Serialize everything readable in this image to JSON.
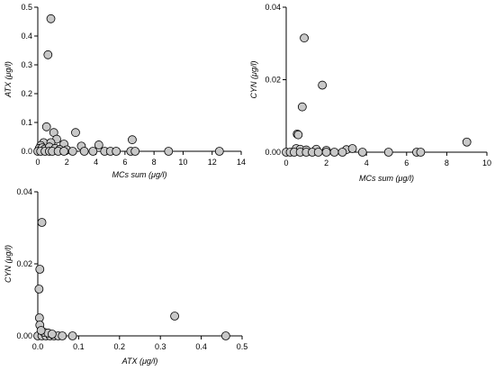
{
  "chart_data": [
    {
      "type": "scatter",
      "xlabel": "MCs sum (μg/l)",
      "ylabel": "ATX (μg/l)",
      "xlim": [
        0,
        14
      ],
      "ylim": [
        0,
        0.5
      ],
      "xticks": [
        0,
        2,
        4,
        6,
        8,
        10,
        12,
        14
      ],
      "yticks": [
        0.0,
        0.1,
        0.2,
        0.3,
        0.4,
        0.5
      ],
      "xtick_labels": [
        "0",
        "2",
        "4",
        "6",
        "8",
        "10",
        "12",
        "14"
      ],
      "ytick_labels": [
        "0.0",
        "0.1",
        "0.2",
        "0.3",
        "0.4",
        "0.5"
      ],
      "grid": false,
      "points": [
        [
          0.9,
          0.46
        ],
        [
          0.7,
          0.335
        ],
        [
          0.6,
          0.085
        ],
        [
          2.6,
          0.065
        ],
        [
          1.1,
          0.065
        ],
        [
          6.5,
          0.04
        ],
        [
          1.3,
          0.042
        ],
        [
          0.4,
          0.03
        ],
        [
          0.9,
          0.03
        ],
        [
          1.8,
          0.025
        ],
        [
          0.2,
          0.02
        ],
        [
          3.0,
          0.018
        ],
        [
          4.2,
          0.022
        ],
        [
          0.1,
          0.01
        ],
        [
          0.3,
          0.012
        ],
        [
          0.5,
          0.008
        ],
        [
          0.8,
          0.015
        ],
        [
          1.2,
          0.01
        ],
        [
          1.5,
          0.006
        ],
        [
          2.0,
          0.005
        ],
        [
          0.0,
          0.0
        ],
        [
          0.2,
          0.0
        ],
        [
          0.5,
          0.0
        ],
        [
          0.8,
          0.0
        ],
        [
          1.0,
          0.0
        ],
        [
          1.4,
          0.0
        ],
        [
          1.8,
          0.0
        ],
        [
          2.4,
          0.0
        ],
        [
          3.2,
          0.0
        ],
        [
          3.8,
          0.0
        ],
        [
          4.6,
          0.0
        ],
        [
          5.0,
          0.0
        ],
        [
          5.4,
          0.0
        ],
        [
          6.4,
          0.0
        ],
        [
          6.7,
          0.0
        ],
        [
          9.0,
          0.0
        ],
        [
          12.5,
          0.0
        ]
      ]
    },
    {
      "type": "scatter",
      "xlabel": "MCs sum (μg/l)",
      "ylabel": "CYN (μg/l)",
      "xlim": [
        0,
        10
      ],
      "ylim": [
        0,
        0.04
      ],
      "xticks": [
        0,
        2,
        4,
        6,
        8,
        10
      ],
      "yticks": [
        0.0,
        0.02,
        0.04
      ],
      "xtick_labels": [
        "0",
        "2",
        "4",
        "6",
        "8",
        "10"
      ],
      "ytick_labels": [
        "0.00",
        "0.02",
        "0.04"
      ],
      "grid": false,
      "points": [
        [
          0.9,
          0.0315
        ],
        [
          1.8,
          0.0185
        ],
        [
          0.8,
          0.0125
        ],
        [
          0.55,
          0.005
        ],
        [
          0.6,
          0.0048
        ],
        [
          9.0,
          0.0028
        ],
        [
          0.5,
          0.001
        ],
        [
          0.7,
          0.0008
        ],
        [
          1.0,
          0.0006
        ],
        [
          1.5,
          0.0008
        ],
        [
          2.0,
          0.0005
        ],
        [
          3.0,
          0.0007
        ],
        [
          3.3,
          0.001
        ],
        [
          0.0,
          0.0
        ],
        [
          0.2,
          0.0
        ],
        [
          0.4,
          0.0
        ],
        [
          0.7,
          0.0
        ],
        [
          1.0,
          0.0
        ],
        [
          1.3,
          0.0
        ],
        [
          1.6,
          0.0
        ],
        [
          2.0,
          0.0
        ],
        [
          2.4,
          0.0
        ],
        [
          2.8,
          0.0
        ],
        [
          3.8,
          0.0
        ],
        [
          5.1,
          0.0
        ],
        [
          6.5,
          0.0
        ],
        [
          6.7,
          0.0
        ]
      ]
    },
    {
      "type": "scatter",
      "xlabel": "ATX (μg/l)",
      "ylabel": "CYN (μg/l)",
      "xlim": [
        0,
        0.5
      ],
      "ylim": [
        0,
        0.04
      ],
      "xticks": [
        0.0,
        0.1,
        0.2,
        0.3,
        0.4,
        0.5
      ],
      "yticks": [
        0.0,
        0.02,
        0.04
      ],
      "xtick_labels": [
        "0.0",
        "0.1",
        "0.2",
        "0.3",
        "0.4",
        "0.5"
      ],
      "ytick_labels": [
        "0.00",
        "0.02",
        "0.04"
      ],
      "grid": false,
      "points": [
        [
          0.01,
          0.0315
        ],
        [
          0.005,
          0.0185
        ],
        [
          0.003,
          0.013
        ],
        [
          0.004,
          0.005
        ],
        [
          0.005,
          0.003
        ],
        [
          0.335,
          0.0055
        ],
        [
          0.46,
          0.0
        ],
        [
          0.0,
          0.0
        ],
        [
          0.01,
          0.0
        ],
        [
          0.02,
          0.0
        ],
        [
          0.03,
          0.0
        ],
        [
          0.04,
          0.0
        ],
        [
          0.05,
          0.0
        ],
        [
          0.06,
          0.0
        ],
        [
          0.085,
          0.0
        ],
        [
          0.015,
          0.001
        ],
        [
          0.025,
          0.0008
        ],
        [
          0.035,
          0.0005
        ],
        [
          0.008,
          0.0015
        ]
      ]
    }
  ]
}
